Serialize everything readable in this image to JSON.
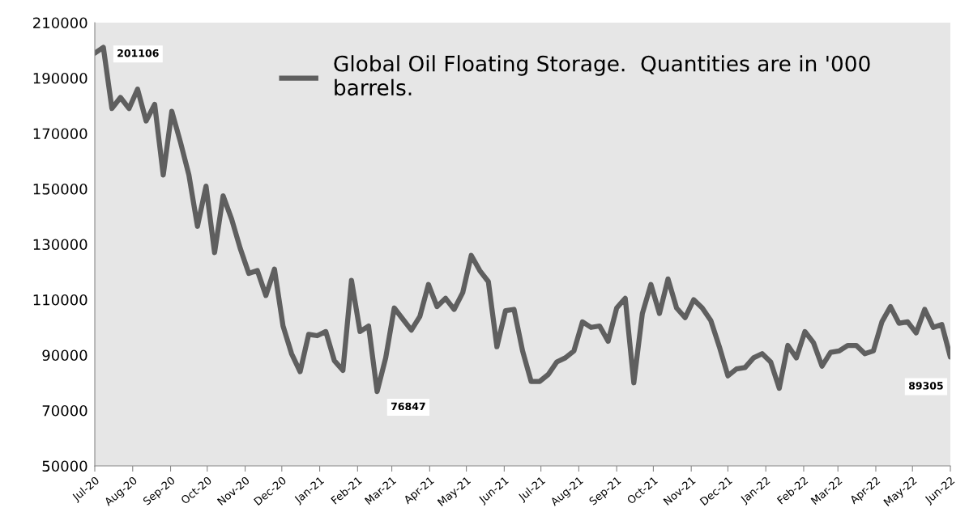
{
  "chart_data": {
    "type": "line",
    "x": [
      "2020-07-01",
      "2020-07-08",
      "2020-07-15",
      "2020-07-22",
      "2020-07-29",
      "2020-08-05",
      "2020-08-12",
      "2020-08-19",
      "2020-08-26",
      "2020-09-02",
      "2020-09-09",
      "2020-09-16",
      "2020-09-23",
      "2020-09-30",
      "2020-10-07",
      "2020-10-14",
      "2020-10-21",
      "2020-10-28",
      "2020-11-04",
      "2020-11-11",
      "2020-11-18",
      "2020-11-25",
      "2020-12-02",
      "2020-12-09",
      "2020-12-16",
      "2020-12-23",
      "2020-12-30",
      "2021-01-06",
      "2021-01-13",
      "2021-01-20",
      "2021-01-27",
      "2021-02-03",
      "2021-02-10",
      "2021-02-17",
      "2021-02-24",
      "2021-03-03",
      "2021-03-10",
      "2021-03-17",
      "2021-03-24",
      "2021-03-31",
      "2021-04-07",
      "2021-04-14",
      "2021-04-21",
      "2021-04-28",
      "2021-05-05",
      "2021-05-12",
      "2021-05-19",
      "2021-05-26",
      "2021-06-02",
      "2021-06-09",
      "2021-06-16",
      "2021-06-23",
      "2021-06-30",
      "2021-07-07",
      "2021-07-14",
      "2021-07-21",
      "2021-07-28",
      "2021-08-04",
      "2021-08-11",
      "2021-08-18",
      "2021-08-25",
      "2021-09-01",
      "2021-09-08",
      "2021-09-15",
      "2021-09-22",
      "2021-09-29",
      "2021-10-06",
      "2021-10-13",
      "2021-10-20",
      "2021-10-27",
      "2021-11-03",
      "2021-11-10",
      "2021-11-17",
      "2021-11-24",
      "2021-12-01",
      "2021-12-08",
      "2021-12-15",
      "2021-12-22",
      "2021-12-29",
      "2022-01-05",
      "2022-01-12",
      "2022-01-19",
      "2022-01-26",
      "2022-02-02",
      "2022-02-09",
      "2022-02-16",
      "2022-02-23",
      "2022-03-02",
      "2022-03-09",
      "2022-03-16",
      "2022-03-23",
      "2022-03-30",
      "2022-04-06",
      "2022-04-13",
      "2022-04-20",
      "2022-04-27",
      "2022-05-04",
      "2022-05-11",
      "2022-05-18",
      "2022-05-25",
      "2022-06-01"
    ],
    "series": [
      {
        "name": "Global Oil Floating Storage.  Quantities are in '000\nbarrels.",
        "color": "#5f5f5f",
        "values": [
          199000,
          201106,
          179000,
          183000,
          179000,
          186000,
          174500,
          180500,
          155000,
          178000,
          167000,
          155000,
          136500,
          151000,
          127000,
          147500,
          139000,
          128500,
          119500,
          120500,
          111500,
          121000,
          100500,
          90500,
          84000,
          97500,
          97000,
          98500,
          88000,
          84500,
          117000,
          98500,
          100500,
          76847,
          89000,
          107000,
          103000,
          99000,
          104000,
          115500,
          107500,
          110500,
          106500,
          112500,
          126000,
          120500,
          116500,
          93000,
          106000,
          106500,
          91500,
          80500,
          80500,
          83000,
          87500,
          89000,
          91500,
          102000,
          100000,
          100500,
          95000,
          107000,
          110500,
          80000,
          105000,
          115500,
          105000,
          117500,
          107000,
          103500,
          110000,
          107000,
          102500,
          93000,
          82500,
          85000,
          85500,
          89000,
          90500,
          87500,
          78000,
          93500,
          89000,
          98500,
          94500,
          86000,
          91000,
          91500,
          93500,
          93500,
          90500,
          91500,
          102000,
          107500,
          101500,
          102000,
          98000,
          106500,
          100000,
          101000,
          89305
        ]
      }
    ],
    "annotations": [
      {
        "text": "201106",
        "x": "2020-07-08",
        "y": 201106
      },
      {
        "text": "76847",
        "x": "2021-02-17",
        "y": 76847
      },
      {
        "text": "89305",
        "x": "2022-06-01",
        "y": 89305
      }
    ],
    "xlim": [
      "2020-07-01",
      "2022-06-01"
    ],
    "xticks": [
      {
        "value": "2020-07-01",
        "label": "Jul-20"
      },
      {
        "value": "2020-08-01",
        "label": "Aug-20"
      },
      {
        "value": "2020-09-01",
        "label": "Sep-20"
      },
      {
        "value": "2020-10-01",
        "label": "Oct-20"
      },
      {
        "value": "2020-11-01",
        "label": "Nov-20"
      },
      {
        "value": "2020-12-01",
        "label": "Dec-20"
      },
      {
        "value": "2021-01-01",
        "label": "Jan-21"
      },
      {
        "value": "2021-02-01",
        "label": "Feb-21"
      },
      {
        "value": "2021-03-01",
        "label": "Mar-21"
      },
      {
        "value": "2021-04-01",
        "label": "Apr-21"
      },
      {
        "value": "2021-05-01",
        "label": "May-21"
      },
      {
        "value": "2021-06-01",
        "label": "Jun-21"
      },
      {
        "value": "2021-07-01",
        "label": "Jul-21"
      },
      {
        "value": "2021-08-01",
        "label": "Aug-21"
      },
      {
        "value": "2021-09-01",
        "label": "Sep-21"
      },
      {
        "value": "2021-10-01",
        "label": "Oct-21"
      },
      {
        "value": "2021-11-01",
        "label": "Nov-21"
      },
      {
        "value": "2021-12-01",
        "label": "Dec-21"
      },
      {
        "value": "2022-01-01",
        "label": "Jan-22"
      },
      {
        "value": "2022-02-01",
        "label": "Feb-22"
      },
      {
        "value": "2022-03-01",
        "label": "Mar-22"
      },
      {
        "value": "2022-04-01",
        "label": "Apr-22"
      },
      {
        "value": "2022-05-01",
        "label": "May-22"
      },
      {
        "value": "2022-06-01",
        "label": "Jun-22"
      }
    ],
    "ylim": [
      50000,
      210000
    ],
    "yticks": [
      50000,
      70000,
      90000,
      110000,
      130000,
      150000,
      170000,
      190000,
      210000
    ],
    "legend": "top right",
    "grid": false,
    "marker": "none",
    "line_style": "solid"
  }
}
